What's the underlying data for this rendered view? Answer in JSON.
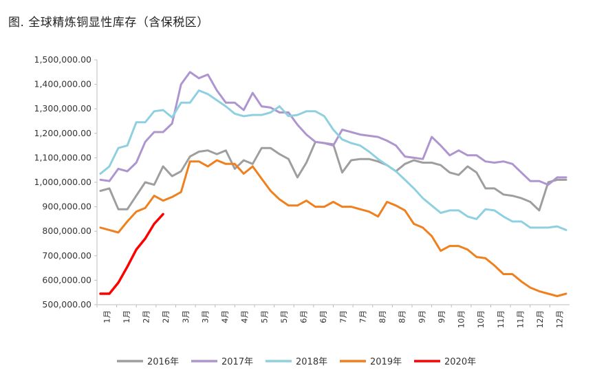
{
  "title": "图. 全球精炼铜显性库存（含保税区）",
  "chart_data": {
    "type": "line",
    "title": "图. 全球精炼铜显性库存（含保税区）",
    "xlabel": "",
    "ylabel": "",
    "ylim": [
      500000,
      1500000
    ],
    "y_ticks": [
      "500,000.00",
      "600,000.00",
      "700,000.00",
      "800,000.00",
      "900,000.00",
      "1,000,000.00",
      "1,100,000.00",
      "1,200,000.00",
      "1,300,000.00",
      "1,400,000.00",
      "1,500,000.00"
    ],
    "y_tick_values": [
      500000,
      600000,
      700000,
      800000,
      900000,
      1000000,
      1100000,
      1200000,
      1300000,
      1400000,
      1500000
    ],
    "x_tick_labels": [
      "1月",
      "1月",
      "2月",
      "2月",
      "3月",
      "3月",
      "4月",
      "4月",
      "5月",
      "5月",
      "6月",
      "6月",
      "7月",
      "7月",
      "8月",
      "8月",
      "9月",
      "9月",
      "10月",
      "10月",
      "11月",
      "11月",
      "12月",
      "12月"
    ],
    "grid": false,
    "legend_position": "bottom",
    "series": [
      {
        "name": "2016年",
        "color": "#9e9e9e",
        "values": [
          965000,
          975000,
          890000,
          890000,
          945000,
          1000000,
          990000,
          1065000,
          1025000,
          1045000,
          1105000,
          1125000,
          1130000,
          1115000,
          1130000,
          1055000,
          1090000,
          1075000,
          1140000,
          1140000,
          1115000,
          1095000,
          1020000,
          1080000,
          1165000,
          1160000,
          1155000,
          1040000,
          1090000,
          1095000,
          1095000,
          1085000,
          1070000,
          1045000,
          1075000,
          1090000,
          1080000,
          1080000,
          1070000,
          1040000,
          1030000,
          1065000,
          1040000,
          975000,
          975000,
          950000,
          945000,
          935000,
          920000,
          885000,
          1000000,
          1010000,
          1010000
        ]
      },
      {
        "name": "2017年",
        "color": "#ad95cf",
        "values": [
          1010000,
          1005000,
          1055000,
          1045000,
          1080000,
          1165000,
          1205000,
          1205000,
          1240000,
          1400000,
          1450000,
          1425000,
          1440000,
          1375000,
          1325000,
          1325000,
          1295000,
          1365000,
          1310000,
          1305000,
          1285000,
          1285000,
          1235000,
          1195000,
          1165000,
          1160000,
          1150000,
          1215000,
          1205000,
          1195000,
          1190000,
          1185000,
          1170000,
          1150000,
          1105000,
          1100000,
          1095000,
          1185000,
          1150000,
          1110000,
          1130000,
          1110000,
          1110000,
          1085000,
          1080000,
          1085000,
          1075000,
          1040000,
          1005000,
          1005000,
          990000,
          1020000,
          1020000
        ]
      },
      {
        "name": "2018年",
        "color": "#8fd0e0",
        "values": [
          1035000,
          1065000,
          1140000,
          1150000,
          1245000,
          1245000,
          1290000,
          1295000,
          1265000,
          1325000,
          1325000,
          1375000,
          1360000,
          1335000,
          1310000,
          1280000,
          1270000,
          1275000,
          1275000,
          1285000,
          1310000,
          1270000,
          1275000,
          1290000,
          1290000,
          1270000,
          1215000,
          1175000,
          1160000,
          1150000,
          1125000,
          1095000,
          1070000,
          1045000,
          1010000,
          975000,
          935000,
          905000,
          875000,
          885000,
          885000,
          860000,
          850000,
          890000,
          885000,
          860000,
          840000,
          840000,
          815000,
          815000,
          815000,
          820000,
          805000
        ]
      },
      {
        "name": "2019年",
        "color": "#f07f1d",
        "values": [
          815000,
          805000,
          795000,
          840000,
          880000,
          895000,
          945000,
          925000,
          940000,
          960000,
          1085000,
          1085000,
          1065000,
          1090000,
          1075000,
          1075000,
          1035000,
          1065000,
          1015000,
          965000,
          930000,
          905000,
          905000,
          925000,
          900000,
          900000,
          920000,
          900000,
          900000,
          890000,
          880000,
          860000,
          920000,
          905000,
          885000,
          830000,
          815000,
          780000,
          720000,
          740000,
          740000,
          725000,
          695000,
          690000,
          660000,
          625000,
          625000,
          595000,
          570000,
          555000,
          545000,
          535000,
          545000
        ]
      },
      {
        "name": "2020年",
        "color": "#ff0000",
        "values": [
          545000,
          545000,
          590000,
          655000,
          725000,
          770000,
          830000,
          870000
        ]
      }
    ]
  }
}
